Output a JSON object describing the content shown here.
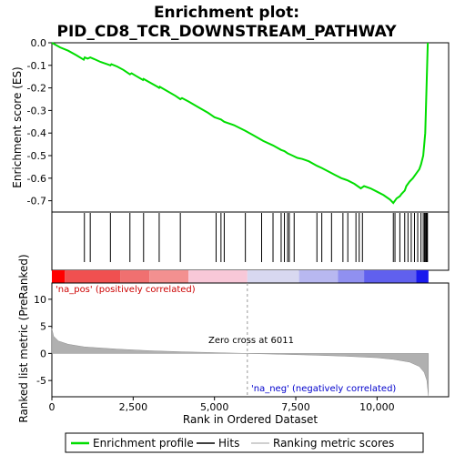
{
  "chart_data": {
    "type": "line",
    "title": "Enrichment plot: PID_CD8_TCR_DOWNSTREAM_PATHWAY",
    "title_line1": "Enrichment plot:",
    "title_line2": "PID_CD8_TCR_DOWNSTREAM_PATHWAY",
    "top_panel": {
      "ylabel": "Enrichment score (ES)",
      "ylim": [
        -0.75,
        0.0
      ],
      "yticks": [
        0.0,
        -0.1,
        -0.2,
        -0.3,
        -0.4,
        -0.5,
        -0.6,
        -0.7
      ],
      "ytick_labels": [
        "0.0",
        "-0.1",
        "-0.2",
        "-0.3",
        "-0.4",
        "-0.5",
        "-0.6",
        "-0.7"
      ],
      "line_color": "#00dd00",
      "es_curve": [
        [
          0,
          0.0
        ],
        [
          250,
          -0.02
        ],
        [
          500,
          -0.035
        ],
        [
          750,
          -0.055
        ],
        [
          980,
          -0.075
        ],
        [
          1010,
          -0.065
        ],
        [
          1100,
          -0.07
        ],
        [
          1180,
          -0.065
        ],
        [
          1300,
          -0.072
        ],
        [
          1500,
          -0.085
        ],
        [
          1700,
          -0.095
        ],
        [
          1800,
          -0.1
        ],
        [
          1830,
          -0.095
        ],
        [
          2000,
          -0.105
        ],
        [
          2200,
          -0.12
        ],
        [
          2400,
          -0.14
        ],
        [
          2450,
          -0.135
        ],
        [
          2600,
          -0.148
        ],
        [
          2800,
          -0.165
        ],
        [
          2820,
          -0.16
        ],
        [
          3000,
          -0.175
        ],
        [
          3250,
          -0.195
        ],
        [
          3300,
          -0.2
        ],
        [
          3320,
          -0.195
        ],
        [
          3500,
          -0.21
        ],
        [
          3800,
          -0.235
        ],
        [
          3950,
          -0.25
        ],
        [
          4000,
          -0.245
        ],
        [
          4200,
          -0.26
        ],
        [
          4500,
          -0.285
        ],
        [
          4800,
          -0.31
        ],
        [
          5000,
          -0.33
        ],
        [
          5100,
          -0.335
        ],
        [
          5200,
          -0.34
        ],
        [
          5300,
          -0.35
        ],
        [
          5600,
          -0.365
        ],
        [
          5950,
          -0.39
        ],
        [
          6200,
          -0.41
        ],
        [
          6500,
          -0.435
        ],
        [
          6800,
          -0.455
        ],
        [
          7050,
          -0.475
        ],
        [
          7150,
          -0.48
        ],
        [
          7250,
          -0.49
        ],
        [
          7400,
          -0.5
        ],
        [
          7550,
          -0.51
        ],
        [
          7700,
          -0.515
        ],
        [
          7900,
          -0.525
        ],
        [
          8150,
          -0.545
        ],
        [
          8300,
          -0.555
        ],
        [
          8500,
          -0.57
        ],
        [
          8700,
          -0.585
        ],
        [
          8900,
          -0.6
        ],
        [
          9000,
          -0.605
        ],
        [
          9100,
          -0.61
        ],
        [
          9300,
          -0.625
        ],
        [
          9500,
          -0.645
        ],
        [
          9600,
          -0.635
        ],
        [
          9800,
          -0.645
        ],
        [
          10000,
          -0.66
        ],
        [
          10200,
          -0.675
        ],
        [
          10400,
          -0.695
        ],
        [
          10500,
          -0.71
        ],
        [
          10550,
          -0.7
        ],
        [
          10600,
          -0.69
        ],
        [
          10700,
          -0.68
        ],
        [
          10750,
          -0.67
        ],
        [
          10850,
          -0.655
        ],
        [
          10900,
          -0.635
        ],
        [
          11000,
          -0.615
        ],
        [
          11100,
          -0.6
        ],
        [
          11200,
          -0.58
        ],
        [
          11300,
          -0.56
        ],
        [
          11350,
          -0.54
        ],
        [
          11420,
          -0.5
        ],
        [
          11450,
          -0.45
        ],
        [
          11480,
          -0.4
        ],
        [
          11500,
          -0.3
        ],
        [
          11520,
          -0.2
        ],
        [
          11540,
          -0.1
        ],
        [
          11560,
          0.0
        ]
      ]
    },
    "hits_panel": {
      "hit_positions": [
        1000,
        1180,
        1800,
        2400,
        2820,
        3300,
        3950,
        5050,
        5200,
        5300,
        5950,
        6450,
        6800,
        7050,
        7150,
        7250,
        7300,
        7450,
        8150,
        8300,
        8600,
        8950,
        9100,
        9350,
        9450,
        9550,
        10500,
        10550,
        10700,
        10850,
        10950,
        11050,
        11150,
        11250,
        11350,
        11420,
        11460,
        11490,
        11510,
        11530,
        11550
      ]
    },
    "ranking_panel": {
      "ylabel": "Ranked list metric (PreRanked)",
      "ylim": [
        -8,
        13
      ],
      "yticks": [
        10,
        5,
        0,
        -5
      ],
      "ytick_labels": [
        "10",
        "5",
        "0",
        "-5"
      ],
      "pos_label": "'na_pos' (positively correlated)",
      "neg_label": "'na_neg' (negatively correlated)",
      "zero_cross_label": "Zero cross at 6011",
      "zero_cross": 6011,
      "metric_curve": [
        [
          0,
          4.6
        ],
        [
          50,
          3.2
        ],
        [
          200,
          2.3
        ],
        [
          500,
          1.7
        ],
        [
          1000,
          1.2
        ],
        [
          2000,
          0.8
        ],
        [
          3000,
          0.5
        ],
        [
          4000,
          0.3
        ],
        [
          5000,
          0.15
        ],
        [
          6011,
          0.0
        ],
        [
          7000,
          -0.15
        ],
        [
          8000,
          -0.3
        ],
        [
          9000,
          -0.5
        ],
        [
          10000,
          -0.8
        ],
        [
          10500,
          -1.1
        ],
        [
          11000,
          -1.6
        ],
        [
          11300,
          -2.4
        ],
        [
          11450,
          -3.5
        ],
        [
          11530,
          -5.0
        ],
        [
          11580,
          -7.8
        ]
      ]
    },
    "xaxis": {
      "label": "Rank in Ordered Dataset",
      "xlim": [
        0,
        12200
      ],
      "xticks": [
        0,
        2500,
        5000,
        7500,
        10000
      ],
      "xtick_labels": [
        "0",
        "2,500",
        "5,000",
        "7,500",
        "10,000"
      ]
    },
    "legend": {
      "placement": "bottom",
      "items": [
        "Enrichment profile",
        "Hits",
        "Ranking metric scores"
      ]
    }
  }
}
